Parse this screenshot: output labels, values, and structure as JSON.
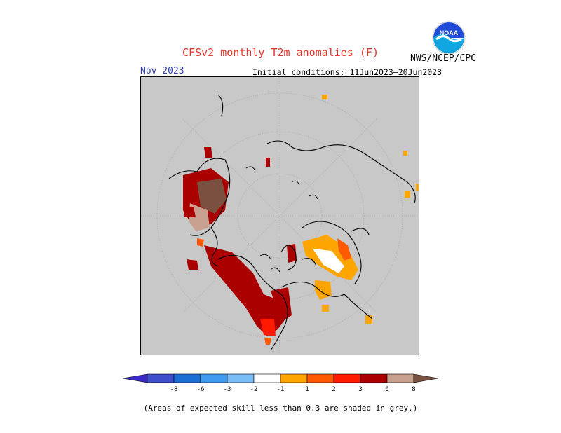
{
  "title": "CFSv2 monthly T2m anomalies (F)",
  "credit": "NWS/NCEP/CPC",
  "logo_text": "NOAA",
  "valid_month": "Nov 2023",
  "initial_conditions": "Initial conditions: 11Jun2023–20Jun2023",
  "footnote": "(Areas of expected skill less than 0.3 are shaded in grey.)",
  "colorbar": {
    "labels": [
      "-8",
      "-6",
      "-3",
      "-2",
      "-1",
      "1",
      "2",
      "3",
      "6",
      "8"
    ],
    "colors": [
      "#3b29c7",
      "#3f4fcc",
      "#1b6fd4",
      "#3f9cf0",
      "#78bdf5",
      "#ffffff",
      "#ffa500",
      "#ff5a00",
      "#ff1a00",
      "#aa0000",
      "#c8a090",
      "#7a5040"
    ]
  },
  "colors": {
    "skill_grey": "#c8c8c8",
    "title_red": "#e8322a",
    "month_blue": "#2a3db0"
  }
}
